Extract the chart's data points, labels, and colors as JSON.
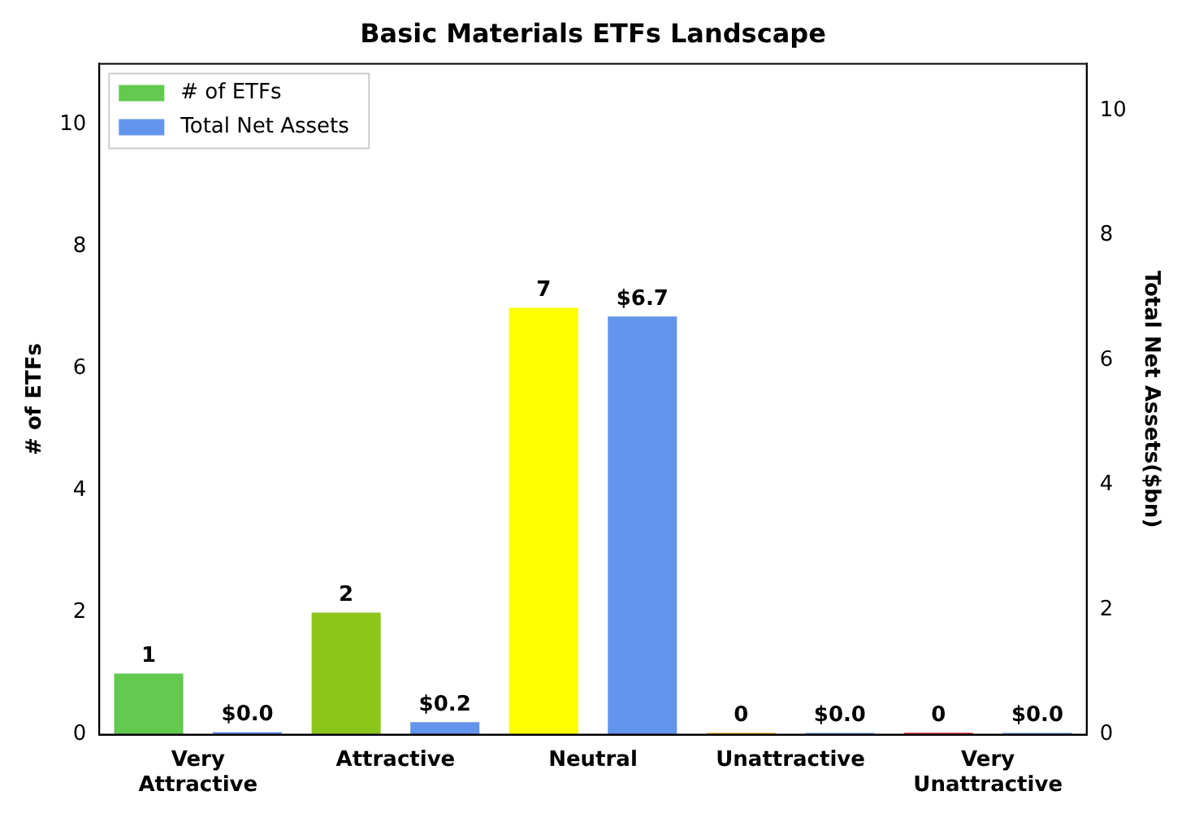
{
  "chart_data": {
    "type": "bar",
    "title": "Basic Materials ETFs Landscape",
    "ylabel": "# of ETFs",
    "y2label": "Total Net Assets($bn)",
    "categories": [
      "Very Attractive",
      "Attractive",
      "Neutral",
      "Unattractive",
      "Very Unattractive"
    ],
    "series": [
      {
        "name": "# of ETFs",
        "color": "#63c94f",
        "colors": [
          "#63c94f",
          "#8cc61a",
          "#ffff00",
          "#ff9900",
          "#ff0000"
        ],
        "values": [
          1,
          2,
          7,
          0,
          0
        ],
        "data_labels": true
      },
      {
        "name": "Total Net Assets",
        "color": "#6495ed",
        "axis": "y2",
        "values": [
          0.04,
          0.2,
          6.7,
          0,
          0
        ],
        "value_labels": [
          "$0.0",
          "$0.2",
          "$6.7",
          "$0.0",
          "$0.0"
        ]
      }
    ],
    "ylim": [
      0,
      11
    ],
    "yticks": [
      0,
      2,
      4,
      6,
      8,
      10
    ],
    "y2lim": [
      0,
      10.75
    ],
    "y2ticks": [
      0,
      2,
      4,
      6,
      8,
      10
    ],
    "grid": false,
    "legend": "top left"
  }
}
